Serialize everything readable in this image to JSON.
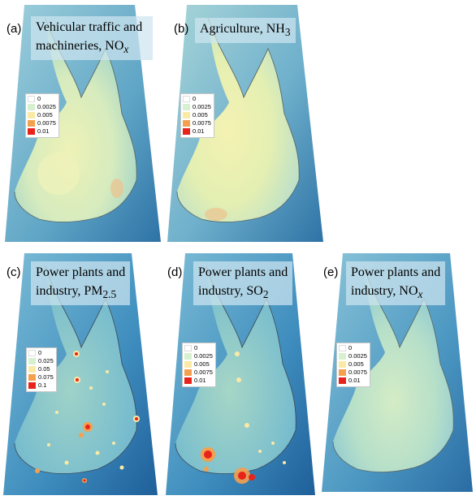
{
  "panels": [
    {
      "id": "a",
      "label": "(a)",
      "title_lines": [
        "Vehicular traffic and",
        "machineries, NO"
      ],
      "title_sub": "x",
      "title_sub_style": "italic",
      "legend": [
        "0",
        "0.0025",
        "0.005",
        "0.0075",
        "0.01"
      ]
    },
    {
      "id": "b",
      "label": "(b)",
      "title_lines": [
        "Agriculture, NH"
      ],
      "title_sub": "3",
      "title_sub_style": "normal",
      "legend": [
        "0",
        "0.0025",
        "0.005",
        "0.0075",
        "0.01"
      ]
    },
    {
      "id": "c",
      "label": "(c)",
      "title_lines": [
        "Power plants and",
        "industry, PM"
      ],
      "title_sub": "2.5",
      "title_sub_style": "normal",
      "legend": [
        "0",
        "0.025",
        "0.05",
        "0.075",
        "0.1"
      ]
    },
    {
      "id": "d",
      "label": "(d)",
      "title_lines": [
        "Power plants and",
        "industry, SO"
      ],
      "title_sub": "2",
      "title_sub_style": "normal",
      "legend": [
        "0",
        "0.0025",
        "0.005",
        "0.0075",
        "0.01"
      ]
    },
    {
      "id": "e",
      "label": "(e)",
      "title_lines": [
        "Power plants and",
        "industry, NO"
      ],
      "title_sub": "x",
      "title_sub_style": "italic",
      "legend": [
        "0",
        "0.0025",
        "0.005",
        "0.0075",
        "0.01"
      ]
    }
  ],
  "legend_colors": [
    "#ffffff",
    "#d7f0cf",
    "#fbe9a6",
    "#f4a04e",
    "#e8231c"
  ],
  "map_colors": {
    "sea_light": "#8bc4d8",
    "sea_dark": "#2f78a8",
    "land_low": "#cfe5b8",
    "land_high": "#eef2b0"
  }
}
